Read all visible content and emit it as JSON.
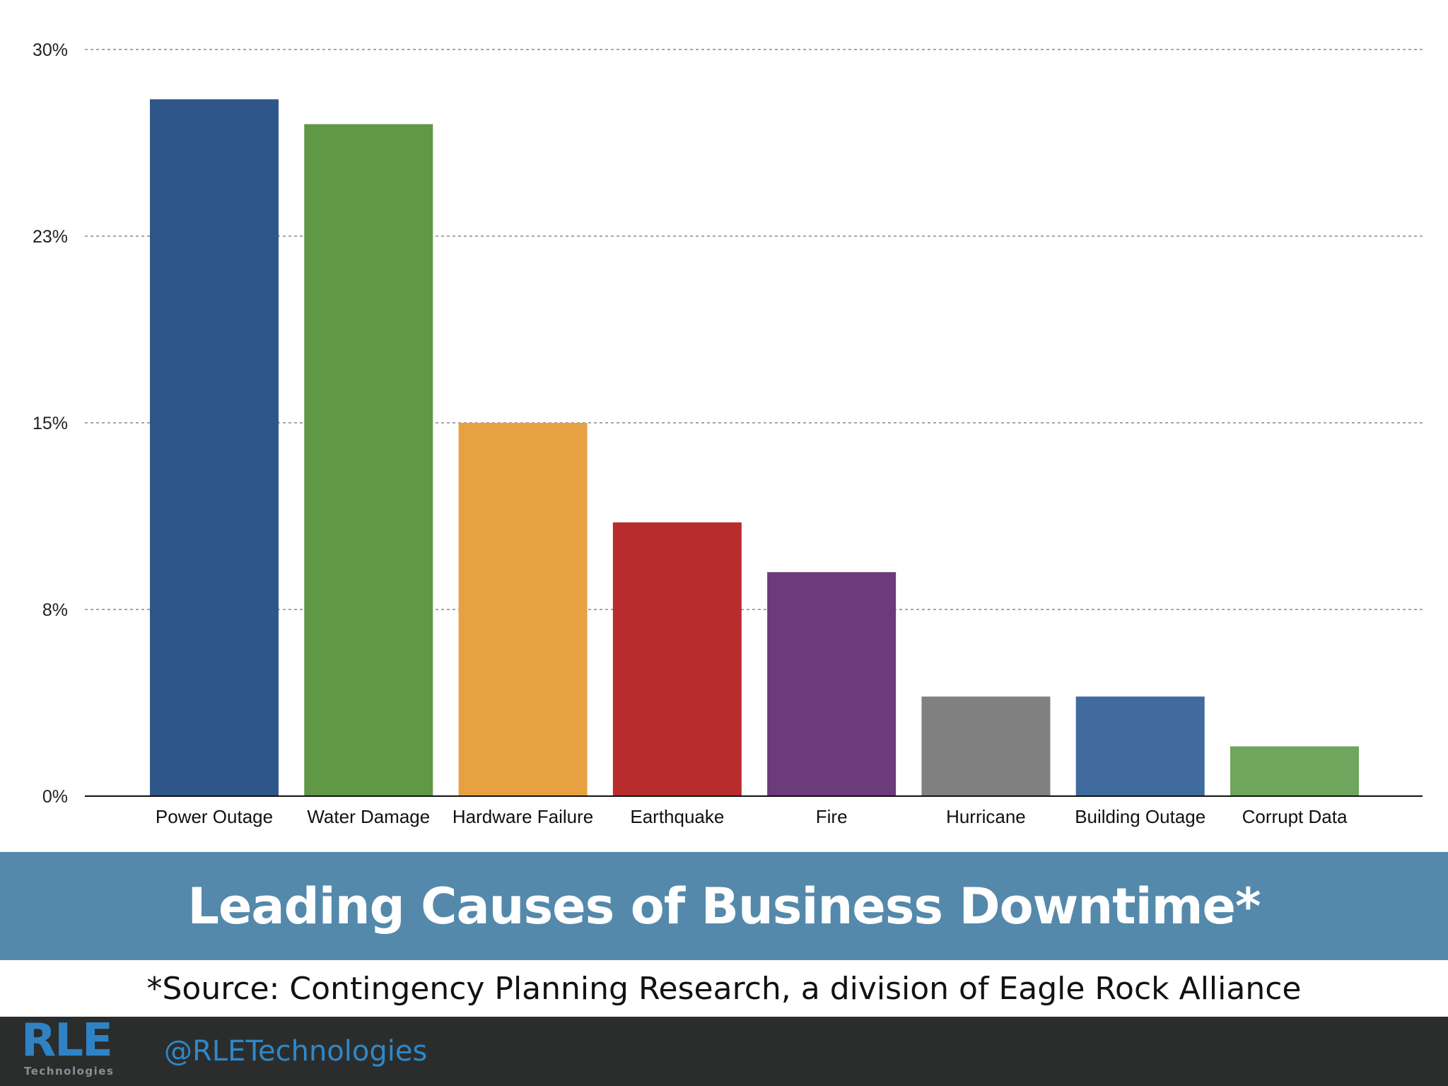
{
  "chart_data": {
    "type": "bar",
    "title": "Leading Causes of Business Downtime*",
    "xlabel": "",
    "ylabel": "",
    "categories": [
      "Power Outage",
      "Water Damage",
      "Hardware Failure",
      "Earthquake",
      "Fire",
      "Hurricane",
      "Building Outage",
      "Corrupt Data"
    ],
    "values": [
      28,
      27,
      15,
      11,
      9,
      4,
      4,
      2
    ],
    "ylim": [
      0,
      30
    ],
    "yticks": [
      0,
      7.5,
      15,
      22.5,
      30
    ],
    "ytick_labels": [
      "0%",
      "8%",
      "15%",
      "23%",
      "30%"
    ],
    "grid": true,
    "legend": "none",
    "colors": [
      "#2f5689",
      "#609846",
      "#e8a141",
      "#b82c2e",
      "#6c3b7b",
      "#808080",
      "#416a9e",
      "#6fa55c"
    ]
  },
  "source_note": "*Source: Contingency Planning Research, a division of Eagle Rock Alliance",
  "footer": {
    "logo_text": "RLE",
    "logo_subtext": "Technologies",
    "handle": "@RLETechnologies",
    "background": "#2b2d2d",
    "accent": "#2f88c8"
  },
  "title_band_color": "#5489ab"
}
